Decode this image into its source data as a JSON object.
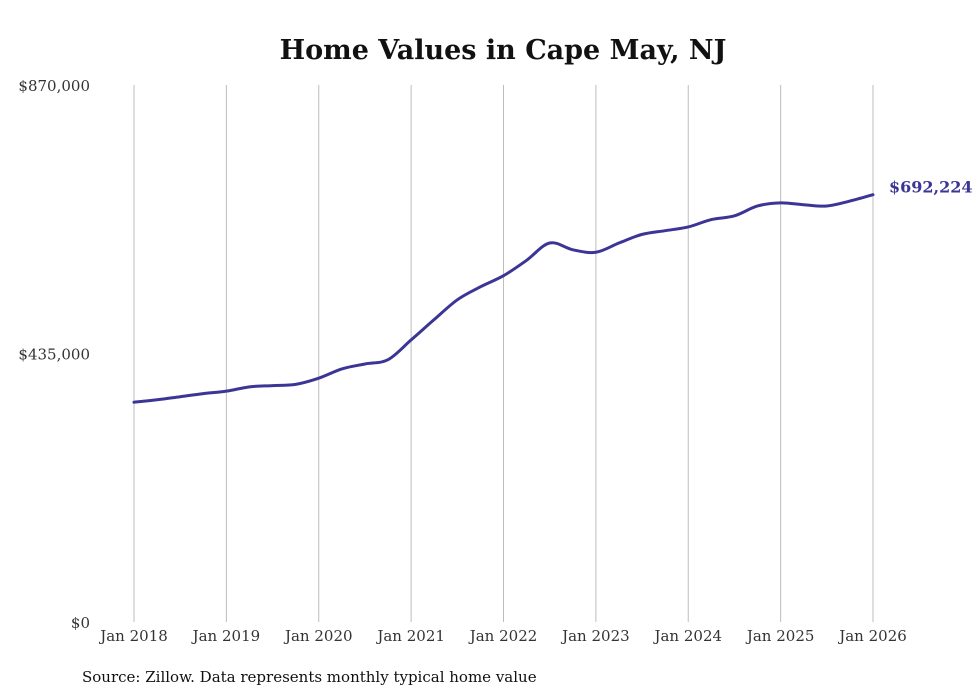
{
  "chart_data": {
    "type": "line",
    "title": "Home Values in Cape May, NJ",
    "xlabel": "",
    "ylabel": "",
    "ylim": [
      0,
      870000
    ],
    "xlim": [
      2018,
      2026
    ],
    "y_ticks": [
      {
        "value": 0,
        "label": "$0"
      },
      {
        "value": 435000,
        "label": "$435,000"
      },
      {
        "value": 870000,
        "label": "$870,000"
      }
    ],
    "x_ticks": [
      {
        "value": 2018,
        "label": "Jan 2018"
      },
      {
        "value": 2019,
        "label": "Jan 2019"
      },
      {
        "value": 2020,
        "label": "Jan 2020"
      },
      {
        "value": 2021,
        "label": "Jan 2021"
      },
      {
        "value": 2022,
        "label": "Jan 2022"
      },
      {
        "value": 2023,
        "label": "Jan 2023"
      },
      {
        "value": 2024,
        "label": "Jan 2024"
      },
      {
        "value": 2025,
        "label": "Jan 2025"
      },
      {
        "value": 2026,
        "label": "Jan 2026"
      }
    ],
    "grid": "vertical",
    "series": [
      {
        "name": "Typical home value",
        "color": "#3b3596",
        "x": [
          2018,
          2018.25,
          2018.5,
          2018.75,
          2019,
          2019.25,
          2019.5,
          2019.75,
          2020,
          2020.25,
          2020.5,
          2020.75,
          2021,
          2021.25,
          2021.5,
          2021.75,
          2022,
          2022.25,
          2022.5,
          2022.75,
          2023,
          2023.25,
          2023.5,
          2023.75,
          2024,
          2024.25,
          2024.5,
          2024.75,
          2025,
          2025.25,
          2025.5,
          2025.75,
          2026
        ],
        "values": [
          356000,
          360000,
          365000,
          370000,
          374000,
          381000,
          383000,
          385000,
          395000,
          410000,
          418000,
          425000,
          457000,
          490000,
          522000,
          543000,
          561000,
          586000,
          614000,
          603000,
          599000,
          614000,
          628000,
          634000,
          640000,
          652000,
          658000,
          674000,
          679000,
          676000,
          674000,
          682000,
          692224
        ]
      }
    ],
    "end_label": "$692,224",
    "source": "Source: Zillow. Data represents monthly typical home value"
  }
}
